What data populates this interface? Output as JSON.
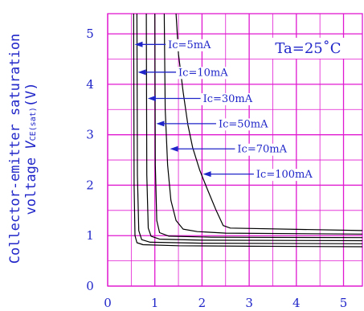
{
  "chart_data": {
    "type": "line",
    "title": "",
    "xlabel": "",
    "ylabel_line1": "Collector-emitter saturation",
    "ylabel_line2_prefix": "voltage ",
    "ylabel_var": "V",
    "ylabel_sub": "CE(sat)",
    "ylabel_unit": "(V)",
    "xlim": [
      0,
      5.4
    ],
    "ylim": [
      0,
      5.4
    ],
    "xticks": [
      "0",
      "1",
      "2",
      "3",
      "4",
      "5"
    ],
    "yticks": [
      "0",
      "1",
      "2",
      "3",
      "4",
      "5"
    ],
    "grid": true,
    "condition": "Ta=25˚C",
    "colors": {
      "grid": "#e018d0",
      "text": "#1f25c8",
      "curve": "#000000",
      "arrow": "#1f25c8"
    },
    "series": [
      {
        "name": "Ic=5mA",
        "x": [
          0.55,
          0.56,
          0.58,
          0.62,
          0.75,
          1.5,
          3.0,
          5.4
        ],
        "y": [
          5.4,
          2.0,
          1.0,
          0.86,
          0.82,
          0.8,
          0.79,
          0.78
        ]
      },
      {
        "name": "Ic=10mA",
        "x": [
          0.62,
          0.63,
          0.66,
          0.72,
          0.9,
          2.0,
          5.4
        ],
        "y": [
          5.4,
          2.2,
          1.1,
          0.92,
          0.87,
          0.85,
          0.84
        ]
      },
      {
        "name": "Ic=30mA",
        "x": [
          0.82,
          0.83,
          0.86,
          0.92,
          1.1,
          2.0,
          5.4
        ],
        "y": [
          5.4,
          2.2,
          1.15,
          0.99,
          0.93,
          0.91,
          0.9
        ]
      },
      {
        "name": "Ic=50mA",
        "x": [
          1.0,
          1.01,
          1.04,
          1.1,
          1.3,
          2.2,
          5.4
        ],
        "y": [
          5.4,
          2.4,
          1.3,
          1.06,
          0.99,
          0.97,
          0.96
        ]
      },
      {
        "name": "Ic=70mA",
        "x": [
          1.2,
          1.22,
          1.27,
          1.34,
          1.45,
          1.6,
          1.9,
          2.5,
          5.4
        ],
        "y": [
          5.4,
          3.5,
          2.4,
          1.7,
          1.3,
          1.13,
          1.08,
          1.05,
          1.03
        ]
      },
      {
        "name": "Ic=100mA",
        "x": [
          1.45,
          1.5,
          1.6,
          1.7,
          1.8,
          1.95,
          2.1,
          2.3,
          2.45,
          2.6,
          5.4
        ],
        "y": [
          5.4,
          4.6,
          3.85,
          3.2,
          2.75,
          2.3,
          1.95,
          1.5,
          1.2,
          1.15,
          1.1
        ]
      }
    ],
    "annotations": [
      {
        "text": "Ic=5mA",
        "label_x": 1.28,
        "y": 4.79,
        "arrow_tip_x": 0.57
      },
      {
        "text": "Ic=10mA",
        "label_x": 1.5,
        "y": 4.24,
        "arrow_tip_x": 0.64
      },
      {
        "text": "Ic=30mA",
        "label_x": 2.02,
        "y": 3.72,
        "arrow_tip_x": 0.85
      },
      {
        "text": "Ic=50mA",
        "label_x": 2.35,
        "y": 3.22,
        "arrow_tip_x": 1.03
      },
      {
        "text": "Ic=70mA",
        "label_x": 2.75,
        "y": 2.72,
        "arrow_tip_x": 1.32
      },
      {
        "text": "Ic=100mA",
        "label_x": 3.15,
        "y": 2.22,
        "arrow_tip_x": 2.02
      }
    ]
  }
}
